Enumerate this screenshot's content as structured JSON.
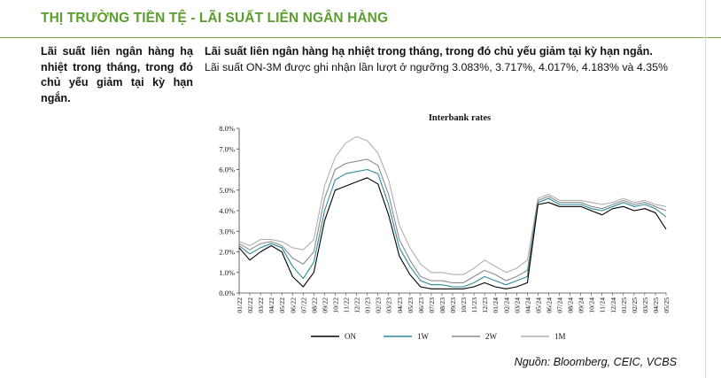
{
  "header": {
    "title": "THỊ TRƯỜNG TIỀN TỆ - LÃI SUẤT LIÊN NGÂN HÀNG"
  },
  "left": {
    "text": "Lãi suất liên ngân hàng hạ nhiệt trong tháng, trong đó chủ yếu giảm tại kỳ hạn ngắn."
  },
  "summary": {
    "bold": "Lãi suất liên ngân hàng hạ nhiệt trong tháng, trong đó chủ yếu giảm tại kỳ hạn ngắn.",
    "text": "Lãi suất ON-3M được ghi nhận lần lượt ở ngưỡng 3.083%, 3.717%, 4.017%, 4.183% và 4.35%"
  },
  "source": "Nguồn: Bloomberg, CEIC, VCBS",
  "chart_data": {
    "type": "line",
    "title": "Interbank rates",
    "xlabel": "",
    "ylabel": "",
    "ylim": [
      0,
      8
    ],
    "yticks": [
      "0.0%",
      "1.0%",
      "2.0%",
      "3.0%",
      "4.0%",
      "5.0%",
      "6.0%",
      "7.0%",
      "8.0%"
    ],
    "categories": [
      "01/22",
      "02/22",
      "03/22",
      "04/22",
      "05/22",
      "06/22",
      "07/22",
      "08/22",
      "09/22",
      "10/22",
      "11/22",
      "12/22",
      "01/23",
      "02/23",
      "03/23",
      "04/23",
      "05/23",
      "06/23",
      "07/23",
      "08/23",
      "09/23",
      "10/23",
      "11/23",
      "12/23",
      "01/24",
      "02/24",
      "03/24",
      "04/24",
      "05/24",
      "06/24",
      "07/24",
      "08/24",
      "09/24",
      "10/24",
      "11/24",
      "12/24",
      "01/25",
      "02/25",
      "03/25",
      "04/25",
      "05/25"
    ],
    "legend_position": "bottom",
    "series": [
      {
        "name": "ON",
        "color": "#000000",
        "values": [
          2.2,
          1.6,
          2.0,
          2.3,
          2.0,
          0.8,
          0.3,
          1.0,
          3.5,
          5.0,
          5.2,
          5.4,
          5.6,
          5.3,
          3.8,
          1.8,
          0.9,
          0.3,
          0.2,
          0.2,
          0.2,
          0.2,
          0.3,
          0.5,
          0.3,
          0.2,
          0.3,
          0.5,
          4.3,
          4.4,
          4.2,
          4.2,
          4.2,
          4.0,
          3.8,
          4.1,
          4.2,
          4.0,
          4.1,
          3.9,
          3.1
        ]
      },
      {
        "name": "1W",
        "color": "#2e8b99",
        "values": [
          2.3,
          1.9,
          2.2,
          2.4,
          2.2,
          1.3,
          0.7,
          1.5,
          4.0,
          5.5,
          5.8,
          5.9,
          6.0,
          5.8,
          4.3,
          2.2,
          1.3,
          0.6,
          0.4,
          0.4,
          0.3,
          0.3,
          0.5,
          0.8,
          0.6,
          0.4,
          0.6,
          0.8,
          4.4,
          4.6,
          4.3,
          4.3,
          4.3,
          4.1,
          4.0,
          4.2,
          4.4,
          4.2,
          4.3,
          4.1,
          3.7
        ]
      },
      {
        "name": "2W",
        "color": "#8c8c8c",
        "values": [
          2.4,
          2.1,
          2.4,
          2.5,
          2.3,
          1.7,
          1.4,
          2.0,
          4.6,
          6.0,
          6.3,
          6.4,
          6.5,
          6.2,
          4.8,
          2.6,
          1.6,
          0.8,
          0.6,
          0.6,
          0.5,
          0.5,
          0.8,
          1.1,
          0.9,
          0.6,
          0.8,
          1.1,
          4.5,
          4.7,
          4.4,
          4.4,
          4.4,
          4.2,
          4.1,
          4.3,
          4.5,
          4.3,
          4.4,
          4.2,
          4.0
        ]
      },
      {
        "name": "1M",
        "color": "#b0b0b0",
        "values": [
          2.5,
          2.3,
          2.6,
          2.6,
          2.5,
          2.2,
          2.1,
          2.6,
          5.2,
          6.6,
          7.3,
          7.6,
          7.4,
          6.8,
          5.5,
          3.3,
          2.2,
          1.4,
          1.0,
          1.0,
          0.9,
          0.9,
          1.2,
          1.6,
          1.3,
          1.0,
          1.2,
          1.6,
          4.6,
          4.8,
          4.5,
          4.5,
          4.5,
          4.4,
          4.3,
          4.4,
          4.6,
          4.4,
          4.5,
          4.3,
          4.2
        ]
      }
    ]
  }
}
